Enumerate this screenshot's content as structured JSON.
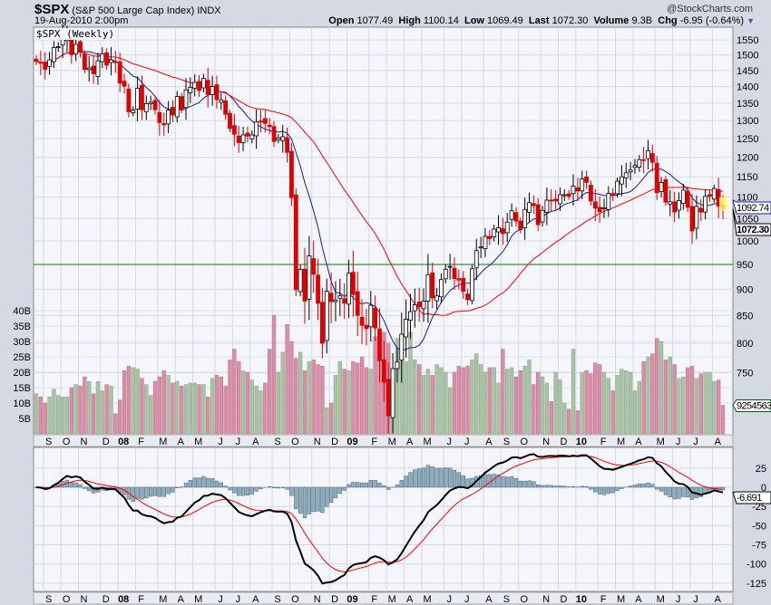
{
  "header": {
    "symbol": "$SPX",
    "description": "(S&P 500 Large Cap Index) INDX",
    "copyright": "@StockCharts.com",
    "datetime": "19-Aug-2010 2:00pm",
    "open_label": "Open",
    "open": "1077.49",
    "high_label": "High",
    "high": "1100.14",
    "low_label": "Low",
    "low": "1069.49",
    "last_label": "Last",
    "last": "1072.30",
    "volume_label": "Volume",
    "volume": "9.3B",
    "chg_label": "Chg",
    "chg": "-6.95 (-0.64%)"
  },
  "chart_data": [
    {
      "type": "candlestick",
      "title": "$SPX (Weekly)",
      "start_date": "2007-08-24",
      "interval": "weekly",
      "yscale": "log",
      "ylim": [
        670,
        1600
      ],
      "yticks": [
        750,
        800,
        850,
        900,
        950,
        1000,
        1050,
        1100,
        1150,
        1200,
        1250,
        1300,
        1350,
        1400,
        1450,
        1500,
        1550
      ],
      "closes": [
        1479,
        1474,
        1454,
        1484,
        1525,
        1527,
        1557,
        1561,
        1501,
        1535,
        1509,
        1453,
        1458,
        1440,
        1481,
        1504,
        1467,
        1484,
        1478,
        1411,
        1401,
        1325,
        1330,
        1395,
        1331,
        1349,
        1353,
        1331,
        1294,
        1288,
        1330,
        1316,
        1370,
        1332,
        1390,
        1398,
        1413,
        1388,
        1425,
        1376,
        1400,
        1361,
        1360,
        1318,
        1278,
        1262,
        1239,
        1260,
        1257,
        1260,
        1296,
        1298,
        1292,
        1283,
        1242,
        1252,
        1255,
        1213,
        1099,
        899,
        940,
        877,
        968,
        930,
        873,
        800,
        896,
        876,
        879,
        887,
        873,
        932,
        890,
        850,
        832,
        826,
        869,
        827,
        770,
        735,
        683,
        757,
        768,
        816,
        843,
        857,
        870,
        866,
        877,
        929,
        883,
        887,
        919,
        940,
        946,
        921,
        918,
        896,
        880,
        941,
        979,
        987,
        1010,
        1005,
        1026,
        1029,
        1016,
        1042,
        1068,
        1044,
        1025,
        1071,
        1087,
        1080,
        1036,
        1069,
        1093,
        1091,
        1091,
        1106,
        1106,
        1102,
        1127,
        1115,
        1145,
        1136,
        1091,
        1074,
        1066,
        1075,
        1109,
        1104,
        1139,
        1150,
        1160,
        1167,
        1179,
        1194,
        1192,
        1217,
        1187,
        1111,
        1136,
        1088,
        1089,
        1065,
        1092,
        1117,
        1076,
        1022,
        1078,
        1065,
        1102,
        1102,
        1121,
        1079,
        1072.3
      ],
      "overlays": [
        {
          "name": "MA short",
          "color": "#1a1aa0",
          "period": 10,
          "last": "1092.74"
        },
        {
          "name": "MA long",
          "color": "#ff0000",
          "period": 30
        }
      ],
      "hline": {
        "value": 950,
        "color": "#008000"
      },
      "last_tag": "1072.30"
    },
    {
      "type": "bar",
      "title": "Volume",
      "unit": "B",
      "yticks": [
        "5B",
        "10B",
        "15B",
        "20B",
        "25B",
        "30B",
        "35B",
        "40B"
      ],
      "ytick_values": [
        5,
        10,
        15,
        20,
        25,
        30,
        35,
        40
      ],
      "values": [
        13,
        12,
        10,
        12,
        14.5,
        12.5,
        12,
        12,
        15,
        16,
        15.5,
        18.5,
        17,
        13,
        17,
        14,
        16,
        15.5,
        6.5,
        11,
        20.5,
        22,
        21.5,
        21,
        18,
        16,
        12.5,
        17,
        18.5,
        20.5,
        19,
        16.5,
        17,
        15.5,
        16,
        16.5,
        16.5,
        16,
        16,
        12,
        18,
        19,
        18.5,
        15.5,
        24,
        27.5,
        23.5,
        20.5,
        20,
        17.5,
        15.5,
        14,
        16.5,
        27.5,
        38.5,
        20,
        26.5,
        35.5,
        30,
        24.5,
        26.5,
        20.5,
        23.5,
        24,
        22.5,
        22,
        8.5,
        10,
        19,
        23.5,
        21,
        20.5,
        23.5,
        23,
        25,
        21.5,
        21,
        31.5,
        30.5,
        33,
        29.5,
        20,
        31,
        29,
        23.5,
        33,
        24,
        22.5,
        19,
        21,
        19,
        22.5,
        21.5,
        20,
        15,
        20,
        22,
        21.5,
        22,
        24,
        26,
        22.5,
        20,
        21.5,
        21.5,
        16.5,
        27.5,
        21,
        21.5,
        18.5,
        20.5,
        22,
        24,
        16,
        20,
        18.5,
        16.5,
        10.5,
        20,
        17.5,
        10,
        8,
        27.5,
        7.5,
        20,
        20.5,
        19.5,
        23,
        22.5,
        20,
        18,
        14,
        19,
        21,
        20.5,
        20,
        14,
        17,
        23.5,
        25,
        26,
        31,
        30,
        24,
        25,
        22.5,
        18,
        18.5,
        21.5,
        22,
        18,
        19.5,
        20,
        20,
        17,
        17.5,
        9.25
      ],
      "up_color": "#a9c2a6",
      "down_color": "#d68fa6",
      "last_tag": "9254563"
    },
    {
      "type": "line",
      "title": "MACD",
      "params": [
        12,
        26,
        9
      ],
      "yticks": [
        25,
        0,
        -25,
        -50,
        -75,
        -100,
        -125
      ],
      "ylim": [
        -135,
        45
      ],
      "last_tag": "-6.691",
      "colors": {
        "macd": "#000000",
        "signal": "#ff0000",
        "histogram": "#8fb0b0"
      }
    }
  ],
  "x_axis": {
    "labels": [
      "S",
      "O",
      "N",
      "D",
      "08",
      "F",
      "M",
      "A",
      "M",
      "J",
      "J",
      "A",
      "S",
      "O",
      "N",
      "D",
      "09",
      "F",
      "M",
      "A",
      "M",
      "J",
      "J",
      "A",
      "S",
      "O",
      "N",
      "D",
      "10",
      "F",
      "M",
      "A",
      "M",
      "J",
      "J",
      "A"
    ]
  }
}
